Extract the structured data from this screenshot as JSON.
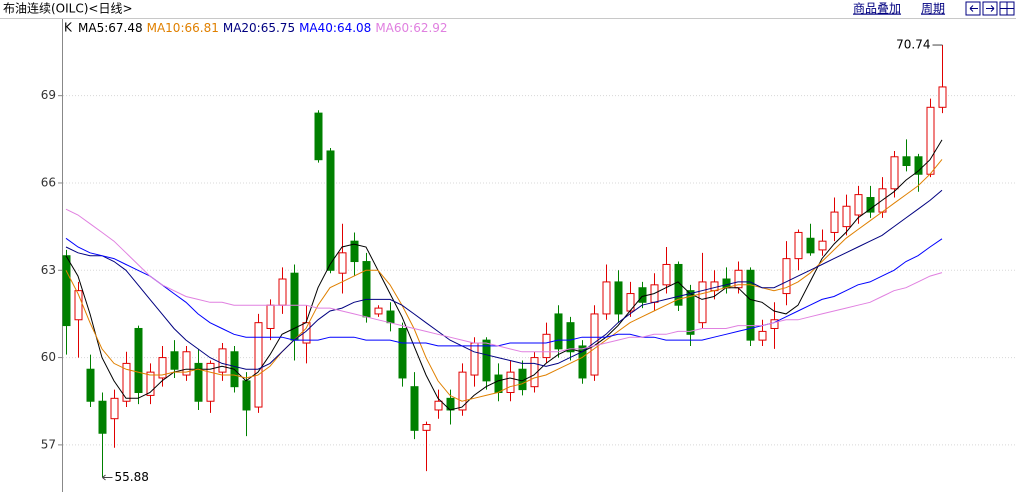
{
  "header": {
    "title": "布油连续(OILC)<日线>",
    "links": [
      "商品叠加",
      "周期"
    ]
  },
  "chart_data": {
    "type": "candlestick",
    "label": "K",
    "open": [
      63.5,
      61.3,
      59.6,
      58.5,
      57.9,
      58.5,
      61.0,
      58.7,
      59.3,
      60.2,
      59.4,
      59.8,
      58.5,
      59.5,
      60.2,
      59.2,
      58.3,
      61.0,
      61.8,
      62.9,
      60.5,
      68.4,
      67.1,
      62.9,
      64.0,
      63.3,
      61.5,
      61.6,
      61.0,
      59.0,
      57.5,
      58.2,
      58.6,
      58.2,
      59.4,
      60.6,
      59.4,
      58.8,
      59.6,
      59.0,
      60.0,
      61.5,
      61.2,
      60.4,
      59.4,
      61.5,
      62.6,
      61.6,
      62.4,
      61.9,
      62.5,
      63.2,
      62.3,
      61.2,
      62.3,
      62.7,
      62.4,
      63.0,
      60.6,
      61.0,
      62.2,
      63.4,
      64.1,
      63.7,
      64.3,
      64.5,
      64.9,
      65.5,
      65.0,
      65.8,
      66.9,
      66.9,
      66.3,
      68.6
    ],
    "high": [
      63.7,
      62.6,
      60.1,
      58.8,
      58.9,
      60.2,
      61.1,
      59.8,
      60.4,
      60.6,
      60.4,
      60.3,
      59.9,
      60.5,
      60.4,
      59.5,
      61.5,
      62.0,
      63.1,
      63.2,
      61.8,
      68.5,
      67.2,
      64.6,
      64.3,
      63.6,
      61.8,
      61.9,
      61.2,
      59.5,
      57.8,
      58.9,
      58.9,
      59.8,
      60.7,
      60.7,
      59.8,
      59.9,
      59.9,
      60.2,
      61.2,
      61.8,
      61.4,
      60.6,
      61.8,
      63.2,
      63.0,
      62.6,
      62.6,
      62.9,
      63.8,
      63.3,
      62.5,
      63.6,
      63.0,
      63.1,
      63.3,
      63.1,
      61.3,
      61.9,
      64.0,
      64.4,
      64.6,
      64.4,
      65.5,
      65.6,
      65.9,
      65.9,
      66.2,
      67.1,
      67.5,
      67.0,
      68.9,
      70.74
    ],
    "low": [
      60.1,
      60.0,
      58.3,
      55.88,
      56.9,
      58.3,
      58.4,
      58.4,
      59.0,
      59.3,
      59.2,
      58.2,
      58.1,
      59.2,
      58.8,
      57.3,
      58.1,
      60.6,
      61.5,
      59.9,
      59.8,
      66.7,
      62.9,
      62.2,
      62.8,
      61.2,
      61.4,
      60.9,
      59.0,
      57.2,
      56.1,
      57.9,
      57.7,
      58.0,
      59.0,
      58.9,
      58.5,
      58.5,
      58.7,
      58.8,
      59.8,
      60.0,
      59.9,
      59.1,
      59.2,
      61.3,
      61.2,
      61.4,
      61.7,
      61.6,
      62.2,
      61.6,
      60.4,
      61.0,
      62.0,
      62.2,
      62.2,
      60.4,
      60.4,
      60.3,
      61.8,
      63.0,
      63.5,
      63.5,
      64.0,
      64.2,
      64.6,
      64.8,
      64.8,
      65.5,
      66.4,
      65.7,
      66.2,
      68.4
    ],
    "close": [
      61.1,
      62.3,
      58.5,
      57.4,
      58.6,
      59.8,
      58.8,
      59.5,
      60.0,
      59.6,
      60.2,
      58.5,
      59.8,
      60.3,
      59.0,
      58.2,
      61.2,
      61.8,
      62.7,
      60.6,
      61.2,
      66.8,
      63.0,
      63.6,
      63.3,
      61.4,
      61.7,
      61.2,
      59.3,
      57.5,
      57.7,
      58.5,
      58.2,
      59.5,
      60.5,
      59.2,
      58.8,
      59.5,
      58.9,
      60.0,
      60.8,
      60.3,
      60.2,
      59.3,
      61.5,
      62.6,
      61.5,
      62.2,
      61.9,
      62.5,
      63.2,
      61.8,
      60.8,
      62.6,
      62.6,
      62.4,
      63.0,
      60.6,
      60.9,
      61.3,
      63.4,
      64.3,
      63.6,
      64.0,
      65.0,
      65.2,
      65.6,
      65.0,
      65.8,
      66.9,
      66.6,
      66.3,
      68.6,
      69.3
    ],
    "up_color": "#e00000",
    "down_color": "#008000",
    "series": [
      {
        "name": "MA5:",
        "color": "#000000",
        "values": [
          63.5,
          62.8,
          61.5,
          60.0,
          59.2,
          58.6,
          58.6,
          58.8,
          59.2,
          59.5,
          59.6,
          59.6,
          59.6,
          59.7,
          59.6,
          59.2,
          59.5,
          60.1,
          60.8,
          61.0,
          61.2,
          62.4,
          63.2,
          63.8,
          63.9,
          63.8,
          63.0,
          62.2,
          61.4,
          60.4,
          59.4,
          58.6,
          58.2,
          58.3,
          58.7,
          59.0,
          59.2,
          59.3,
          59.2,
          59.4,
          59.8,
          60.1,
          60.3,
          60.2,
          60.4,
          60.7,
          61.1,
          61.6,
          62.1,
          62.2,
          62.4,
          62.6,
          62.2,
          62.0,
          62.1,
          62.4,
          62.4,
          62.0,
          61.9,
          61.6,
          61.5,
          61.8,
          62.6,
          63.4,
          63.9,
          64.3,
          64.8,
          65.1,
          65.4,
          65.7,
          66.1,
          66.4,
          66.8,
          67.48
        ]
      },
      {
        "name": "MA10:",
        "color": "#e08000",
        "values": [
          63.0,
          62.2,
          61.2,
          60.3,
          59.8,
          59.6,
          59.5,
          59.4,
          59.4,
          59.5,
          59.5,
          59.6,
          59.5,
          59.4,
          59.4,
          59.3,
          59.4,
          59.7,
          60.2,
          60.6,
          61.0,
          61.8,
          62.4,
          62.6,
          62.8,
          63.0,
          63.0,
          62.5,
          61.8,
          61.0,
          60.0,
          59.2,
          58.7,
          58.5,
          58.6,
          58.7,
          58.8,
          59.0,
          59.1,
          59.3,
          59.4,
          59.6,
          59.8,
          60.0,
          60.3,
          60.6,
          60.9,
          61.2,
          61.4,
          61.6,
          61.8,
          62.0,
          62.1,
          62.2,
          62.3,
          62.4,
          62.5,
          62.5,
          62.4,
          62.3,
          62.4,
          62.6,
          62.9,
          63.3,
          63.7,
          64.1,
          64.4,
          64.7,
          65.0,
          65.3,
          65.6,
          65.9,
          66.3,
          66.81
        ]
      },
      {
        "name": "MA20:",
        "color": "#000080",
        "values": [
          63.8,
          63.6,
          63.5,
          63.5,
          63.3,
          63.0,
          62.5,
          62.0,
          61.5,
          61.0,
          60.6,
          60.3,
          60.0,
          59.8,
          59.7,
          59.6,
          59.6,
          59.8,
          60.2,
          60.6,
          60.9,
          61.3,
          61.6,
          61.7,
          61.9,
          62.0,
          62.0,
          62.0,
          61.8,
          61.5,
          61.2,
          60.9,
          60.6,
          60.4,
          60.2,
          60.1,
          60.0,
          59.9,
          59.8,
          59.8,
          59.7,
          59.8,
          60.0,
          60.2,
          60.5,
          60.8,
          61.2,
          61.5,
          61.8,
          61.9,
          62.0,
          62.1,
          62.2,
          62.3,
          62.4,
          62.5,
          62.6,
          62.6,
          62.4,
          62.4,
          62.6,
          62.8,
          63.0,
          63.2,
          63.4,
          63.6,
          63.8,
          64.0,
          64.2,
          64.5,
          64.8,
          65.1,
          65.4,
          65.75
        ]
      },
      {
        "name": "MA40:",
        "color": "#0000ff",
        "values": [
          64.1,
          63.8,
          63.6,
          63.5,
          63.4,
          63.2,
          63.0,
          62.8,
          62.5,
          62.2,
          61.9,
          61.5,
          61.2,
          61.0,
          60.8,
          60.7,
          60.7,
          60.7,
          60.7,
          60.6,
          60.6,
          60.6,
          60.7,
          60.7,
          60.7,
          60.6,
          60.6,
          60.6,
          60.5,
          60.5,
          60.5,
          60.4,
          60.4,
          60.4,
          60.4,
          60.4,
          60.4,
          60.5,
          60.5,
          60.5,
          60.5,
          60.6,
          60.6,
          60.7,
          60.7,
          60.7,
          60.8,
          60.8,
          60.7,
          60.7,
          60.6,
          60.6,
          60.6,
          60.6,
          60.7,
          60.8,
          60.9,
          61.0,
          61.1,
          61.2,
          61.4,
          61.6,
          61.8,
          62.0,
          62.1,
          62.3,
          62.5,
          62.6,
          62.8,
          63.0,
          63.3,
          63.5,
          63.8,
          64.08
        ]
      },
      {
        "name": "MA60:",
        "color": "#e080e0",
        "values": [
          65.1,
          64.9,
          64.6,
          64.3,
          64.0,
          63.6,
          63.2,
          62.8,
          62.5,
          62.3,
          62.1,
          62.0,
          61.9,
          61.9,
          61.8,
          61.8,
          61.8,
          61.8,
          61.8,
          61.8,
          61.8,
          61.7,
          61.7,
          61.6,
          61.5,
          61.4,
          61.3,
          61.2,
          61.1,
          61.0,
          60.9,
          60.8,
          60.7,
          60.6,
          60.5,
          60.5,
          60.4,
          60.3,
          60.2,
          60.2,
          60.2,
          60.2,
          60.3,
          60.3,
          60.4,
          60.5,
          60.6,
          60.7,
          60.7,
          60.8,
          60.8,
          60.9,
          60.9,
          61.0,
          61.0,
          61.0,
          61.1,
          61.1,
          61.1,
          61.2,
          61.3,
          61.3,
          61.4,
          61.5,
          61.6,
          61.7,
          61.8,
          61.9,
          62.1,
          62.3,
          62.4,
          62.6,
          62.8,
          62.92
        ]
      }
    ],
    "ylim": [
      55.45,
      71.6
    ],
    "yticks": [
      57,
      60,
      63,
      66,
      69
    ],
    "grid": true
  }
}
